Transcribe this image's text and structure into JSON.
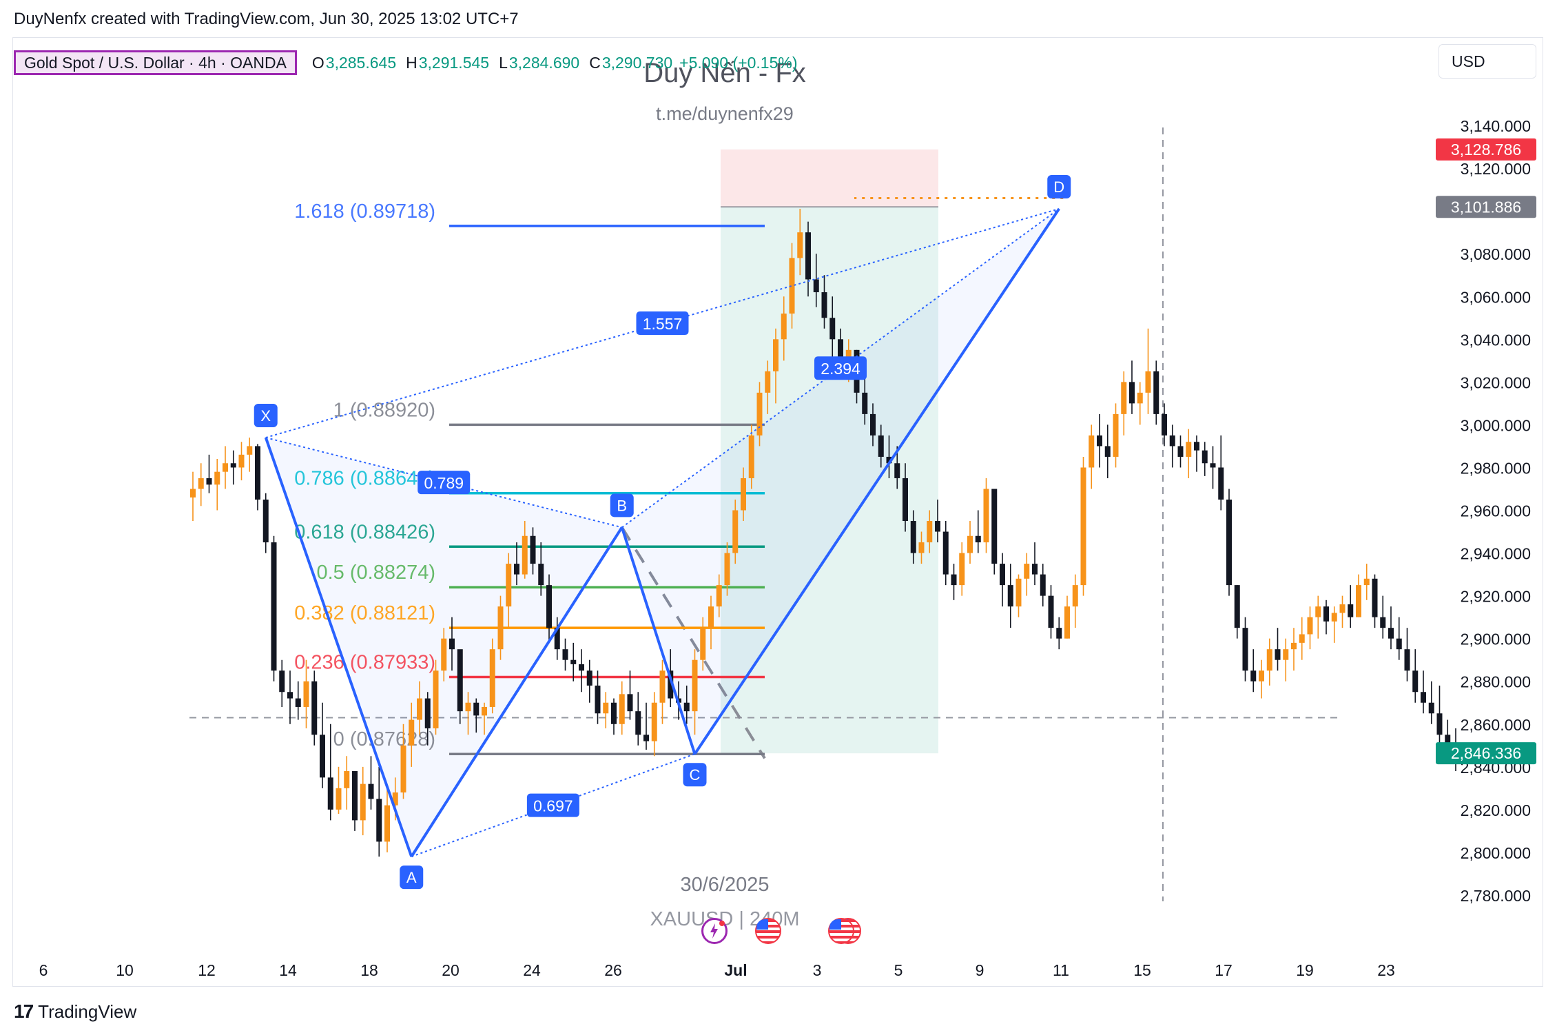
{
  "header": {
    "author_line": "DuyNenfx created with TradingView.com, Jun 30, 2025 13:02 UTC+7"
  },
  "legend": {
    "symbol": "Gold Spot / U.S. Dollar · 4h · OANDA",
    "o_label": "O",
    "o_value": "3,285.645",
    "h_label": "H",
    "h_value": "3,291.545",
    "l_label": "L",
    "l_value": "3,284.690",
    "c_label": "C",
    "c_value": "3,290.730",
    "change": "+5.090 (+0.15%)"
  },
  "currency": "USD",
  "watermark": {
    "title": "Duy Nến - Fx",
    "link": "t.me/duynenfx29",
    "date": "30/6/2025",
    "symbol_line": "XAUUSD | 240M"
  },
  "footer": {
    "brand": "TradingView"
  },
  "colors": {
    "up": "#f7931a",
    "down": "#131722",
    "pattern": "#2962ff",
    "green_label": "#089981",
    "red_label": "#f23645",
    "gray_label": "#787b86"
  },
  "chart_data": {
    "type": "candlestick",
    "symbol": "XAUUSD",
    "timeframe": "4h",
    "ylim": [
      2770,
      3160
    ],
    "y_ticks": [
      "3,140.000",
      "3,120.000",
      "3,080.000",
      "3,060.000",
      "3,040.000",
      "3,020.000",
      "3,000.000",
      "2,980.000",
      "2,960.000",
      "2,940.000",
      "2,920.000",
      "2,900.000",
      "2,880.000",
      "2,860.000",
      "2,840.000",
      "2,820.000",
      "2,800.000",
      "2,780.000"
    ],
    "x_ticks": [
      "6",
      "10",
      "12",
      "14",
      "18",
      "20",
      "24",
      "26",
      "Jul",
      "3",
      "5",
      "9",
      "11",
      "15",
      "17",
      "19",
      "23"
    ],
    "price_labels": [
      {
        "value": 3128.786,
        "text": "3,128.786",
        "color": "#f23645"
      },
      {
        "value": 3101.886,
        "text": "3,101.886",
        "color": "#787b86"
      },
      {
        "value": 2846.336,
        "text": "2,846.336",
        "color": "#089981"
      }
    ],
    "candles_hlc": [
      [
        2978,
        2955,
        2970
      ],
      [
        2982,
        2962,
        2975
      ],
      [
        2986,
        2968,
        2972
      ],
      [
        2984,
        2960,
        2978
      ],
      [
        2990,
        2970,
        2982
      ],
      [
        2988,
        2972,
        2980
      ],
      [
        2992,
        2974,
        2986
      ],
      [
        2994,
        2978,
        2990
      ],
      [
        2991,
        2960,
        2965
      ],
      [
        2968,
        2940,
        2945
      ],
      [
        2948,
        2880,
        2885
      ],
      [
        2890,
        2868,
        2875
      ],
      [
        2885,
        2860,
        2872
      ],
      [
        2880,
        2862,
        2868
      ],
      [
        2890,
        2858,
        2880
      ],
      [
        2885,
        2850,
        2855
      ],
      [
        2870,
        2830,
        2835
      ],
      [
        2860,
        2815,
        2820
      ],
      [
        2840,
        2818,
        2830
      ],
      [
        2845,
        2820,
        2838
      ],
      [
        2836,
        2810,
        2815
      ],
      [
        2840,
        2808,
        2832
      ],
      [
        2845,
        2820,
        2825
      ],
      [
        2840,
        2798,
        2805
      ],
      [
        2830,
        2800,
        2822
      ],
      [
        2835,
        2815,
        2828
      ],
      [
        2860,
        2825,
        2850
      ],
      [
        2870,
        2840,
        2862
      ],
      [
        2880,
        2855,
        2872
      ],
      [
        2875,
        2850,
        2858
      ],
      [
        2890,
        2855,
        2885
      ],
      [
        2905,
        2880,
        2900
      ],
      [
        2910,
        2885,
        2895
      ],
      [
        2890,
        2860,
        2866
      ],
      [
        2875,
        2855,
        2870
      ],
      [
        2872,
        2856,
        2864
      ],
      [
        2870,
        2855,
        2868
      ],
      [
        2900,
        2865,
        2895
      ],
      [
        2920,
        2890,
        2915
      ],
      [
        2940,
        2905,
        2935
      ],
      [
        2945,
        2925,
        2930
      ],
      [
        2955,
        2928,
        2948
      ],
      [
        2952,
        2930,
        2935
      ],
      [
        2945,
        2920,
        2925
      ],
      [
        2930,
        2898,
        2905
      ],
      [
        2910,
        2890,
        2895
      ],
      [
        2900,
        2885,
        2890
      ],
      [
        2898,
        2880,
        2888
      ],
      [
        2895,
        2875,
        2885
      ],
      [
        2890,
        2870,
        2878
      ],
      [
        2885,
        2860,
        2865
      ],
      [
        2875,
        2858,
        2870
      ],
      [
        2872,
        2855,
        2860
      ],
      [
        2880,
        2855,
        2874
      ],
      [
        2885,
        2862,
        2866
      ],
      [
        2875,
        2850,
        2855
      ],
      [
        2870,
        2848,
        2852
      ],
      [
        2875,
        2845,
        2870
      ],
      [
        2890,
        2860,
        2885
      ],
      [
        2895,
        2868,
        2872
      ],
      [
        2880,
        2862,
        2870
      ],
      [
        2878,
        2860,
        2866
      ],
      [
        2895,
        2855,
        2890
      ],
      [
        2910,
        2885,
        2905
      ],
      [
        2920,
        2895,
        2915
      ],
      [
        2930,
        2910,
        2925
      ],
      [
        2945,
        2920,
        2940
      ],
      [
        2965,
        2935,
        2960
      ],
      [
        2980,
        2955,
        2975
      ],
      [
        3000,
        2970,
        2995
      ],
      [
        3020,
        2990,
        3015
      ],
      [
        3030,
        3005,
        3025
      ],
      [
        3045,
        3010,
        3040
      ],
      [
        3060,
        3030,
        3052
      ],
      [
        3085,
        3045,
        3078
      ],
      [
        3101,
        3070,
        3090
      ],
      [
        3095,
        3060,
        3068
      ],
      [
        3080,
        3055,
        3062
      ],
      [
        3070,
        3045,
        3050
      ],
      [
        3060,
        3030,
        3040
      ],
      [
        3045,
        3025,
        3030
      ],
      [
        3040,
        3020,
        3035
      ],
      [
        3035,
        3010,
        3015
      ],
      [
        3025,
        3000,
        3005
      ],
      [
        3010,
        2990,
        2995
      ],
      [
        3000,
        2980,
        2985
      ],
      [
        2995,
        2975,
        2982
      ],
      [
        2990,
        2970,
        2975
      ],
      [
        2982,
        2950,
        2955
      ],
      [
        2960,
        2935,
        2940
      ],
      [
        2950,
        2935,
        2945
      ],
      [
        2960,
        2940,
        2955
      ],
      [
        2965,
        2945,
        2950
      ],
      [
        2955,
        2925,
        2930
      ],
      [
        2935,
        2918,
        2925
      ],
      [
        2945,
        2920,
        2940
      ],
      [
        2955,
        2935,
        2948
      ],
      [
        2960,
        2940,
        2945
      ],
      [
        2975,
        2940,
        2970
      ],
      [
        2970,
        2930,
        2935
      ],
      [
        2940,
        2915,
        2925
      ],
      [
        2935,
        2905,
        2915
      ],
      [
        2930,
        2910,
        2928
      ],
      [
        2940,
        2920,
        2935
      ],
      [
        2945,
        2925,
        2930
      ],
      [
        2935,
        2915,
        2920
      ],
      [
        2925,
        2900,
        2905
      ],
      [
        2910,
        2895,
        2900
      ],
      [
        2920,
        2900,
        2915
      ],
      [
        2930,
        2905,
        2925
      ],
      [
        2985,
        2920,
        2980
      ],
      [
        3000,
        2970,
        2995
      ],
      [
        3005,
        2980,
        2990
      ],
      [
        3000,
        2975,
        2985
      ],
      [
        3010,
        2980,
        3005
      ],
      [
        3025,
        2995,
        3020
      ],
      [
        3030,
        3005,
        3010
      ],
      [
        3020,
        3000,
        3015
      ],
      [
        3045,
        3005,
        3025
      ],
      [
        3030,
        3000,
        3005
      ],
      [
        3010,
        2990,
        2995
      ],
      [
        3000,
        2980,
        2990
      ],
      [
        2995,
        2980,
        2985
      ],
      [
        2998,
        2975,
        2992
      ],
      [
        2995,
        2978,
        2988
      ],
      [
        2992,
        2976,
        2982
      ],
      [
        2990,
        2970,
        2980
      ],
      [
        2995,
        2960,
        2965
      ],
      [
        2970,
        2920,
        2925
      ],
      [
        2925,
        2900,
        2905
      ],
      [
        2910,
        2880,
        2885
      ],
      [
        2895,
        2875,
        2880
      ],
      [
        2890,
        2872,
        2885
      ],
      [
        2900,
        2878,
        2895
      ],
      [
        2905,
        2885,
        2890
      ],
      [
        2900,
        2880,
        2895
      ],
      [
        2905,
        2885,
        2898
      ],
      [
        2910,
        2890,
        2902
      ],
      [
        2915,
        2895,
        2910
      ],
      [
        2920,
        2900,
        2915
      ],
      [
        2918,
        2902,
        2908
      ],
      [
        2915,
        2898,
        2912
      ],
      [
        2920,
        2905,
        2916
      ],
      [
        2925,
        2905,
        2910
      ],
      [
        2930,
        2910,
        2925
      ],
      [
        2935,
        2918,
        2928
      ],
      [
        2930,
        2905,
        2910
      ],
      [
        2920,
        2900,
        2905
      ],
      [
        2915,
        2895,
        2900
      ],
      [
        2910,
        2890,
        2895
      ],
      [
        2905,
        2880,
        2885
      ],
      [
        2895,
        2870,
        2875
      ],
      [
        2885,
        2865,
        2870
      ],
      [
        2880,
        2860,
        2865
      ],
      [
        2878,
        2850,
        2855
      ],
      [
        2862,
        2842,
        2848
      ],
      [
        2858,
        2838,
        2846
      ]
    ],
    "harmonic_pattern": {
      "points": [
        {
          "label": "X",
          "index": 9,
          "price": 2994
        },
        {
          "label": "A",
          "index": 27,
          "price": 2798
        },
        {
          "label": "B",
          "index": 53,
          "price": 2952
        },
        {
          "label": "C",
          "index": 62,
          "price": 2846
        },
        {
          "label": "D",
          "index": 107,
          "price": 3101
        }
      ],
      "ratios": [
        {
          "label": "0.789",
          "between": [
            "X",
            "B"
          ]
        },
        {
          "label": "0.697",
          "between": [
            "A",
            "C"
          ]
        },
        {
          "label": "2.394",
          "between": [
            "B",
            "D"
          ]
        },
        {
          "label": "1.557",
          "between": [
            "X",
            "D"
          ]
        }
      ]
    },
    "fib_levels": [
      {
        "label": "1.618 (0.89718)",
        "price": 3093,
        "color": "#2962ff"
      },
      {
        "label": "1 (0.88920)",
        "price": 3000,
        "color": "#787b86"
      },
      {
        "label": "0.786 (0.88643)",
        "price": 2968,
        "color": "#00bcd4"
      },
      {
        "label": "0.618 (0.88426)",
        "price": 2943,
        "color": "#089981"
      },
      {
        "label": "0.5 (0.88274)",
        "price": 2924,
        "color": "#4caf50"
      },
      {
        "label": "0.382 (0.88121)",
        "price": 2905,
        "color": "#ff9800"
      },
      {
        "label": "0.236 (0.87933)",
        "price": 2882,
        "color": "#f23645"
      },
      {
        "label": "0 (0.87628)",
        "price": 2846,
        "color": "#787b86"
      }
    ],
    "position_box": {
      "entry": 3101.886,
      "stop": 3128.786,
      "target": 2846.336
    }
  }
}
